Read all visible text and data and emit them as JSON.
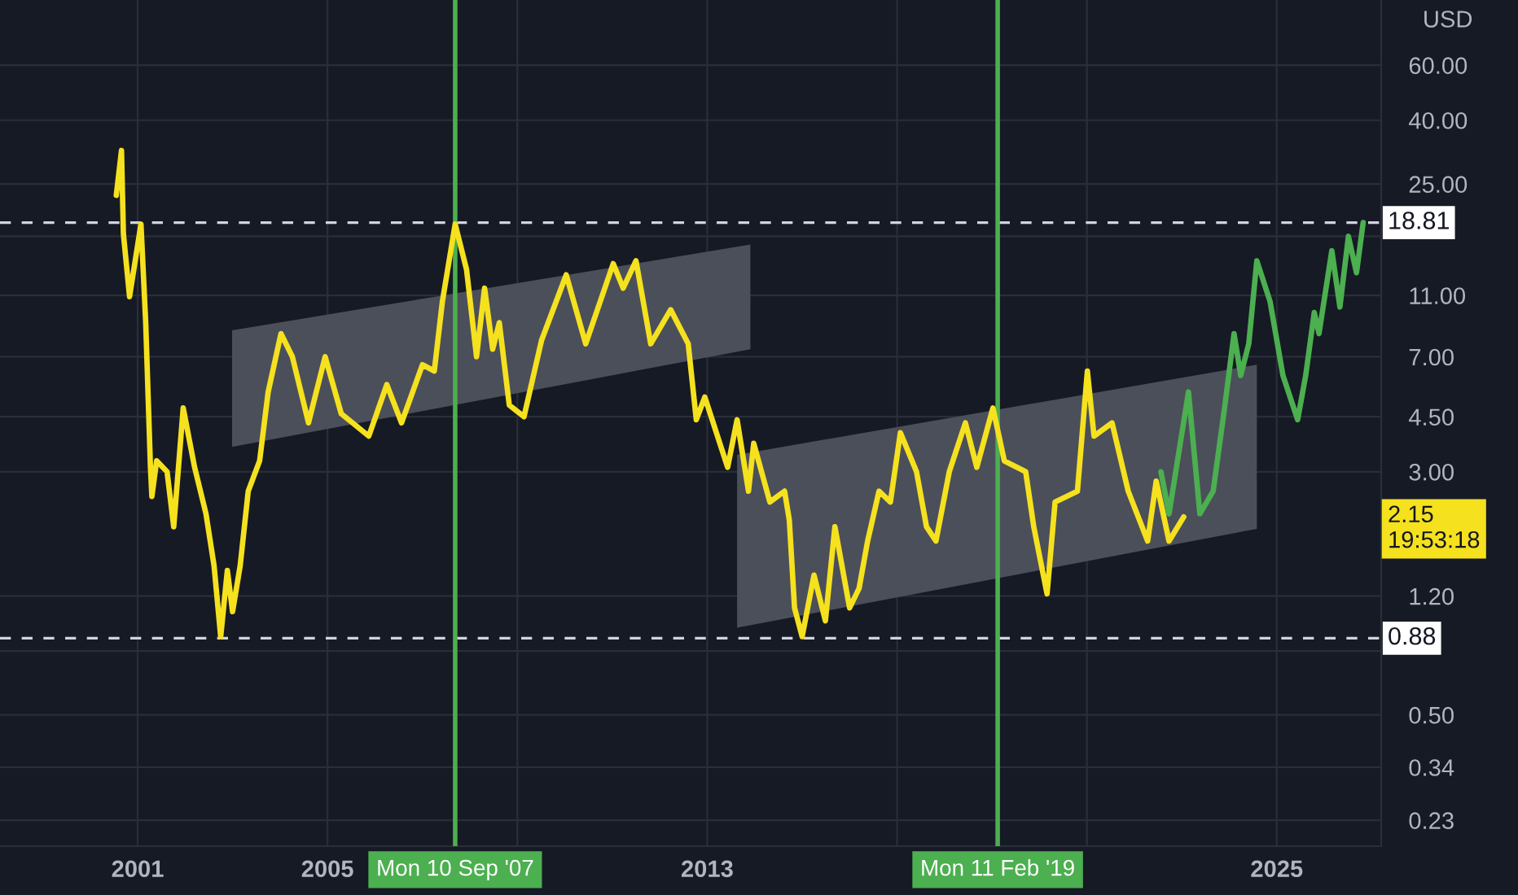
{
  "chart_data": {
    "type": "line",
    "ylabel": "USD",
    "log": "y",
    "grid": true,
    "xlim": [
      1998.1,
      2027.2
    ],
    "ylim": [
      0.19,
      97
    ],
    "xticks": [
      2001,
      2005,
      {
        "value": 2009,
        "label": null
      },
      2013,
      {
        "value": 2017,
        "label": null
      },
      {
        "value": 2021,
        "label": null
      },
      2025
    ],
    "yticks": [
      {
        "value": 60,
        "label": "60.00"
      },
      {
        "value": 40,
        "label": "40.00"
      },
      {
        "value": 25,
        "label": "25.00"
      },
      {
        "value": 17,
        "label": null
      },
      {
        "value": 11,
        "label": "11.00"
      },
      {
        "value": 7,
        "label": "7.00"
      },
      {
        "value": 4.5,
        "label": "4.50"
      },
      {
        "value": 3,
        "label": "3.00"
      },
      {
        "value": 1.2,
        "label": "1.20"
      },
      {
        "value": 0.8,
        "label": null
      },
      {
        "value": 0.5,
        "label": "0.50"
      },
      {
        "value": 0.34,
        "label": "0.34"
      },
      {
        "value": 0.23,
        "label": "0.23"
      }
    ],
    "series": [
      {
        "color": "#4b4f5a",
        "x": [
          2002.99,
          2013.91
        ],
        "values": [
          null,
          null
        ],
        "lower": [
          3.6,
          7.4
        ],
        "upper": [
          8.5,
          16.0
        ]
      },
      {
        "color": "#4b4f5a",
        "x": [
          2013.63,
          2024.58
        ],
        "values": [
          null,
          null
        ],
        "lower": [
          0.95,
          1.97
        ],
        "upper": [
          3.4,
          6.6
        ]
      },
      {
        "color": "#f5e11e",
        "x": [
          2000.55,
          2000.66,
          2000.7,
          2000.83,
          2001.07,
          2001.17,
          2001.27,
          2001.3,
          2001.4,
          2001.62,
          2001.76,
          2001.96,
          2002.2,
          2002.44,
          2002.61,
          2002.75,
          2002.89,
          2003.0,
          2003.16,
          2003.33,
          2003.57,
          2003.75,
          2004.02,
          2004.26,
          2004.6,
          2004.95,
          2005.29,
          2005.87,
          2006.25,
          2006.56,
          2007.0,
          2007.25,
          2007.42,
          2007.69,
          2007.93,
          2008.14,
          2008.31,
          2008.48,
          2008.62,
          2008.83,
          2009.14,
          2009.51,
          2010.03,
          2010.44,
          2011.02,
          2011.23,
          2011.5,
          2011.81,
          2012.23,
          2012.6,
          2012.77,
          2012.95,
          2013.43,
          2013.63,
          2013.87,
          2013.98,
          2014.32,
          2014.63,
          2014.73,
          2014.84,
          2015.0,
          2015.25,
          2015.49,
          2015.69,
          2016.0,
          2016.2,
          2016.38,
          2016.62,
          2016.86,
          2017.07,
          2017.41,
          2017.62,
          2017.82,
          2018.1,
          2018.44,
          2018.68,
          2019.02,
          2019.26,
          2019.71,
          2019.88,
          2020.16,
          2020.33,
          2020.8,
          2021.01,
          2021.15,
          2021.53,
          2021.87,
          2022.28,
          2022.46,
          2022.73,
          2023.04
        ],
        "values": [
          23,
          32,
          17.3,
          10.9,
          18.6,
          9.0,
          3.1,
          2.5,
          3.25,
          3.0,
          2.0,
          4.8,
          3.1,
          2.2,
          1.5,
          0.89,
          1.45,
          1.07,
          1.5,
          2.6,
          3.25,
          5.4,
          8.3,
          7.0,
          4.3,
          7.0,
          4.6,
          3.9,
          5.7,
          4.3,
          6.6,
          6.3,
          10.5,
          18.6,
          13.3,
          7.0,
          11.6,
          7.4,
          9.0,
          4.9,
          4.5,
          7.9,
          12.8,
          7.7,
          13.9,
          11.6,
          14.2,
          7.7,
          9.9,
          7.7,
          4.4,
          5.2,
          3.1,
          4.4,
          2.6,
          3.7,
          2.4,
          2.6,
          2.1,
          1.1,
          0.89,
          1.4,
          1.0,
          2.0,
          1.1,
          1.27,
          1.8,
          2.6,
          2.4,
          4.0,
          3.0,
          2.0,
          1.8,
          3.0,
          4.3,
          3.1,
          4.8,
          3.25,
          3.0,
          2.0,
          1.22,
          2.4,
          2.6,
          6.3,
          3.9,
          4.3,
          2.6,
          1.8,
          2.8,
          1.8,
          2.15
        ]
      },
      {
        "color": "#4caf50",
        "x": [
          2022.56,
          2022.73,
          2023.14,
          2023.38,
          2023.66,
          2023.9,
          2024.1,
          2024.24,
          2024.41,
          2024.58,
          2024.86,
          2025.13,
          2025.44,
          2025.61,
          2025.79,
          2025.89,
          2026.16,
          2026.33,
          2026.51,
          2026.68,
          2026.82
        ],
        "values": [
          3.0,
          2.2,
          5.4,
          2.2,
          2.6,
          4.8,
          8.3,
          6.1,
          7.7,
          14.2,
          10.5,
          6.1,
          4.4,
          6.1,
          9.7,
          8.3,
          15.3,
          10.1,
          17.0,
          13.0,
          18.8
        ]
      }
    ],
    "ref_lines": [
      {
        "axis": "y",
        "value": 18.81,
        "label": "18.81",
        "color": "#d1d4dc",
        "line_style": "dashed"
      },
      {
        "axis": "y",
        "value": 0.88,
        "label": "0.88",
        "color": "#d1d4dc",
        "line_style": "dashed"
      },
      {
        "axis": "x",
        "value": 2007.69,
        "label": "Mon 10 Sep '07",
        "color": "#4caf50",
        "line_style": "solid"
      },
      {
        "axis": "x",
        "value": 2019.12,
        "label": "Mon 11 Feb '19",
        "color": "#4caf50",
        "line_style": "solid"
      }
    ],
    "annotations": [
      "2.15\n19:53:18"
    ]
  }
}
